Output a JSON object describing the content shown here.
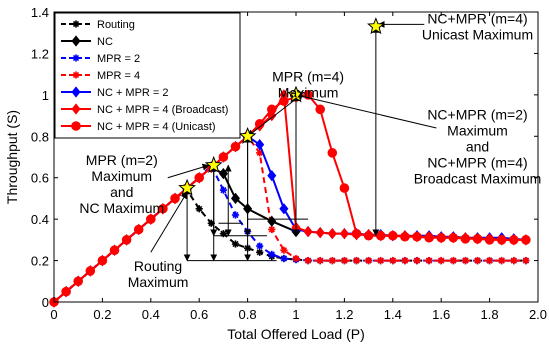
{
  "chart_data": {
    "type": "line",
    "xlabel": "Total Offered Load (P)",
    "ylabel": "Throughput (S)",
    "xlim": [
      0,
      2
    ],
    "ylim": [
      0,
      1.4
    ],
    "xticks": [
      0,
      0.2,
      0.4,
      0.6,
      0.8,
      1,
      1.2,
      1.4,
      1.6,
      1.8,
      2
    ],
    "xtick_labels": [
      "0",
      "0.2",
      "0.4",
      "0.6",
      "0.8",
      "1",
      "1.2",
      "1.4",
      "1.6",
      "1.8",
      "2.0"
    ],
    "yticks": [
      0,
      0.2,
      0.4,
      0.6,
      0.8,
      1,
      1.2,
      1.4
    ],
    "ytick_labels": [
      "0",
      "0.2",
      "0.4",
      "0.6",
      "0.8",
      "1",
      "1.2",
      "1.4"
    ],
    "grid": false,
    "legend_position": "top-left",
    "series": [
      {
        "name": "Routing",
        "color": "#000000",
        "dash": true,
        "marker": "asterisk",
        "x": [
          0,
          0.05,
          0.1,
          0.15,
          0.2,
          0.25,
          0.3,
          0.35,
          0.4,
          0.45,
          0.5,
          0.55,
          0.6,
          0.65,
          0.7,
          0.75,
          0.8,
          0.85,
          0.9,
          0.95,
          1.0,
          1.05,
          1.1,
          1.15,
          1.2,
          1.25,
          1.3,
          1.35,
          1.4,
          1.45,
          1.5,
          1.55,
          1.6,
          1.65,
          1.7,
          1.75,
          1.8,
          1.85,
          1.9,
          1.95
        ],
        "y": [
          0,
          0.05,
          0.1,
          0.15,
          0.2,
          0.25,
          0.3,
          0.35,
          0.4,
          0.45,
          0.5,
          0.54,
          0.45,
          0.38,
          0.33,
          0.28,
          0.26,
          0.24,
          0.22,
          0.21,
          0.205,
          0.2,
          0.2,
          0.2,
          0.2,
          0.2,
          0.2,
          0.2,
          0.2,
          0.2,
          0.2,
          0.2,
          0.2,
          0.2,
          0.2,
          0.2,
          0.2,
          0.2,
          0.2,
          0.2
        ]
      },
      {
        "name": "NC",
        "color": "#000000",
        "dash": false,
        "marker": "diamond",
        "x": [
          0,
          0.05,
          0.1,
          0.15,
          0.2,
          0.25,
          0.3,
          0.35,
          0.4,
          0.45,
          0.5,
          0.55,
          0.6,
          0.65,
          0.7,
          0.75,
          0.8,
          0.9,
          1.0
        ],
        "y": [
          0,
          0.05,
          0.1,
          0.15,
          0.2,
          0.25,
          0.3,
          0.35,
          0.4,
          0.45,
          0.5,
          0.55,
          0.6,
          0.65,
          0.62,
          0.5,
          0.45,
          0.39,
          0.34
        ]
      },
      {
        "name": "MPR = 2",
        "color": "#0000ff",
        "dash": true,
        "marker": "asterisk",
        "x": [
          0,
          0.05,
          0.1,
          0.15,
          0.2,
          0.25,
          0.3,
          0.35,
          0.4,
          0.45,
          0.5,
          0.55,
          0.6,
          0.65,
          0.7,
          0.75,
          0.8,
          0.85,
          0.9,
          0.95,
          1.0,
          1.05,
          1.1,
          1.15,
          1.2,
          1.25,
          1.3,
          1.35,
          1.4,
          1.45,
          1.5,
          1.55,
          1.6,
          1.65,
          1.7,
          1.75,
          1.8,
          1.85,
          1.9,
          1.95
        ],
        "y": [
          0,
          0.05,
          0.1,
          0.15,
          0.2,
          0.25,
          0.3,
          0.35,
          0.4,
          0.45,
          0.5,
          0.55,
          0.6,
          0.66,
          0.54,
          0.42,
          0.34,
          0.27,
          0.23,
          0.21,
          0.205,
          0.2,
          0.2,
          0.2,
          0.2,
          0.2,
          0.2,
          0.2,
          0.2,
          0.2,
          0.2,
          0.2,
          0.2,
          0.2,
          0.2,
          0.2,
          0.2,
          0.2,
          0.2,
          0.2
        ]
      },
      {
        "name": "MPR = 4",
        "color": "#ff0000",
        "dash": true,
        "marker": "asterisk",
        "x": [
          0,
          0.05,
          0.1,
          0.15,
          0.2,
          0.25,
          0.3,
          0.35,
          0.4,
          0.45,
          0.5,
          0.55,
          0.6,
          0.65,
          0.7,
          0.75,
          0.8,
          0.85,
          0.9,
          0.95,
          1.0,
          1.05,
          1.1,
          1.15,
          1.2,
          1.25,
          1.3,
          1.35,
          1.4,
          1.45,
          1.5,
          1.55,
          1.6,
          1.65,
          1.7,
          1.75,
          1.8,
          1.85,
          1.9,
          1.95
        ],
        "y": [
          0,
          0.05,
          0.1,
          0.15,
          0.2,
          0.25,
          0.3,
          0.35,
          0.4,
          0.45,
          0.5,
          0.55,
          0.6,
          0.65,
          0.7,
          0.75,
          0.8,
          0.72,
          0.35,
          0.25,
          0.21,
          0.2,
          0.2,
          0.2,
          0.2,
          0.2,
          0.2,
          0.2,
          0.2,
          0.2,
          0.2,
          0.2,
          0.2,
          0.2,
          0.2,
          0.2,
          0.2,
          0.2,
          0.2,
          0.2
        ]
      },
      {
        "name": "NC + MPR = 2",
        "color": "#0000ff",
        "dash": false,
        "marker": "diamond",
        "x": [
          0,
          0.05,
          0.1,
          0.15,
          0.2,
          0.25,
          0.3,
          0.35,
          0.4,
          0.45,
          0.5,
          0.55,
          0.6,
          0.65,
          0.7,
          0.75,
          0.8,
          0.85,
          0.9,
          0.95,
          1.0,
          1.05,
          1.1,
          1.15,
          1.2,
          1.25,
          1.3,
          1.35,
          1.4,
          1.45,
          1.5,
          1.55,
          1.6,
          1.65,
          1.7,
          1.75,
          1.8,
          1.85,
          1.9,
          1.95
        ],
        "y": [
          0,
          0.05,
          0.1,
          0.15,
          0.2,
          0.25,
          0.3,
          0.35,
          0.4,
          0.45,
          0.5,
          0.55,
          0.6,
          0.65,
          0.7,
          0.75,
          0.8,
          0.76,
          0.61,
          0.45,
          0.35,
          0.34,
          0.335,
          0.33,
          0.33,
          0.33,
          0.325,
          0.325,
          0.32,
          0.32,
          0.32,
          0.32,
          0.315,
          0.315,
          0.31,
          0.31,
          0.31,
          0.31,
          0.305,
          0.3
        ]
      },
      {
        "name": "NC + MPR = 4 (Broadcast)",
        "color": "#ff0000",
        "dash": false,
        "marker": "diamond",
        "x": [
          0,
          0.05,
          0.1,
          0.15,
          0.2,
          0.25,
          0.3,
          0.35,
          0.4,
          0.45,
          0.5,
          0.55,
          0.6,
          0.65,
          0.7,
          0.75,
          0.8,
          0.85,
          0.9,
          0.95,
          1.0,
          1.05,
          1.1,
          1.15,
          1.2,
          1.25,
          1.3,
          1.35,
          1.4,
          1.45,
          1.5,
          1.55,
          1.6,
          1.65,
          1.7,
          1.75,
          1.8,
          1.85,
          1.9,
          1.95
        ],
        "y": [
          0,
          0.05,
          0.1,
          0.15,
          0.2,
          0.25,
          0.3,
          0.35,
          0.4,
          0.45,
          0.5,
          0.55,
          0.6,
          0.65,
          0.7,
          0.75,
          0.8,
          0.85,
          0.9,
          1.0,
          0.36,
          0.34,
          0.335,
          0.33,
          0.33,
          0.325,
          0.325,
          0.32,
          0.32,
          0.32,
          0.315,
          0.315,
          0.31,
          0.31,
          0.31,
          0.305,
          0.305,
          0.3,
          0.3,
          0.3
        ]
      },
      {
        "name": "NC + MPR = 4 (Unicast)",
        "color": "#ff0000",
        "dash": false,
        "marker": "circle",
        "x": [
          0,
          0.05,
          0.1,
          0.15,
          0.2,
          0.25,
          0.3,
          0.35,
          0.4,
          0.45,
          0.5,
          0.55,
          0.6,
          0.65,
          0.7,
          0.75,
          0.8,
          0.85,
          0.9,
          0.95,
          1.0,
          1.05,
          1.1,
          1.15,
          1.2,
          1.25,
          1.3,
          1.35,
          1.4,
          1.45,
          1.5,
          1.55,
          1.6,
          1.65,
          1.7,
          1.75,
          1.8,
          1.85,
          1.9,
          1.95
        ],
        "y": [
          0,
          0.05,
          0.1,
          0.15,
          0.2,
          0.25,
          0.3,
          0.35,
          0.4,
          0.45,
          0.5,
          0.55,
          0.6,
          0.65,
          0.7,
          0.75,
          0.8,
          0.86,
          0.93,
          0.97,
          0.99,
          1.0,
          0.93,
          0.72,
          0.55,
          0.33,
          0.32,
          0.32,
          0.32,
          0.315,
          0.315,
          0.31,
          0.31,
          0.31,
          0.305,
          0.305,
          0.3,
          0.3,
          0.3,
          0.3
        ]
      }
    ],
    "stars": [
      {
        "x": 0.55,
        "y": 0.55
      },
      {
        "x": 0.66,
        "y": 0.66
      },
      {
        "x": 0.8,
        "y": 0.8
      },
      {
        "x": 1.0,
        "y": 1.0
      },
      {
        "x": 1.33,
        "y": 1.33
      }
    ],
    "vertical_arrows": [
      {
        "x": 0.55,
        "y1": 0.55,
        "y2": 0.2
      },
      {
        "x": 0.66,
        "y1": 0.66,
        "y2": 0.2
      },
      {
        "x": 0.66,
        "y1": 0.66,
        "y2": 0.32
      },
      {
        "x": 0.72,
        "y1": 0.66,
        "y2": 0.32
      },
      {
        "x": 0.8,
        "y1": 0.8,
        "y2": 0.2
      },
      {
        "x": 0.8,
        "y1": 0.8,
        "y2": 0.32
      },
      {
        "x": 1.0,
        "y1": 1.0,
        "y2": 0.32
      },
      {
        "x": 1.33,
        "y1": 1.33,
        "y2": 0.32
      }
    ],
    "horizontal_lines": [
      {
        "x1": 0.55,
        "x2": 0.92,
        "y": 0.2
      },
      {
        "x1": 0.66,
        "x2": 0.88,
        "y": 0.32
      },
      {
        "x1": 0.8,
        "x2": 1.05,
        "y": 0.4
      },
      {
        "x1": 0.68,
        "x2": 0.78,
        "y": 0.38
      }
    ],
    "annotations": [
      {
        "id": "mpr2",
        "lines": [
          "MPR (m=2)",
          "Maximum",
          "and",
          "NC Maximum"
        ],
        "tx": 0.28,
        "ty": 0.57,
        "ax": 0.64,
        "ay": 0.66,
        "from_x": 0.47,
        "from_y": 0.6
      },
      {
        "id": "routing",
        "lines": [
          "Routing",
          "Maximum"
        ],
        "tx": 0.43,
        "ty": 0.135,
        "ax": 0.55,
        "ay": 0.53,
        "from_x": 0.4,
        "from_y": 0.24
      },
      {
        "id": "mpr4",
        "lines": [
          "MPR (m=4)",
          "Maximum"
        ],
        "tx": 1.05,
        "ty": 1.05,
        "ax": 0.8,
        "ay": 0.8,
        "from_x": 1.0,
        "from_y": 0.98
      },
      {
        "id": "ncmpr2",
        "lines": [
          "NC+MPR (m=2)",
          "Maximum",
          "and",
          "NC+MPR (m=4)",
          "Broadcast Maximum"
        ],
        "tx": 1.75,
        "ty": 0.75,
        "ax": 1.0,
        "ay": 1.0,
        "from_x": 1.58,
        "from_y": 0.84
      },
      {
        "id": "ncmpr4u",
        "lines": [
          "NC+MPR (m=4)",
          "Unicast Maximum"
        ],
        "tx": 1.75,
        "ty": 1.33,
        "ax": 1.34,
        "ay": 1.34,
        "from_x": 1.53,
        "from_y": 1.34
      }
    ]
  }
}
